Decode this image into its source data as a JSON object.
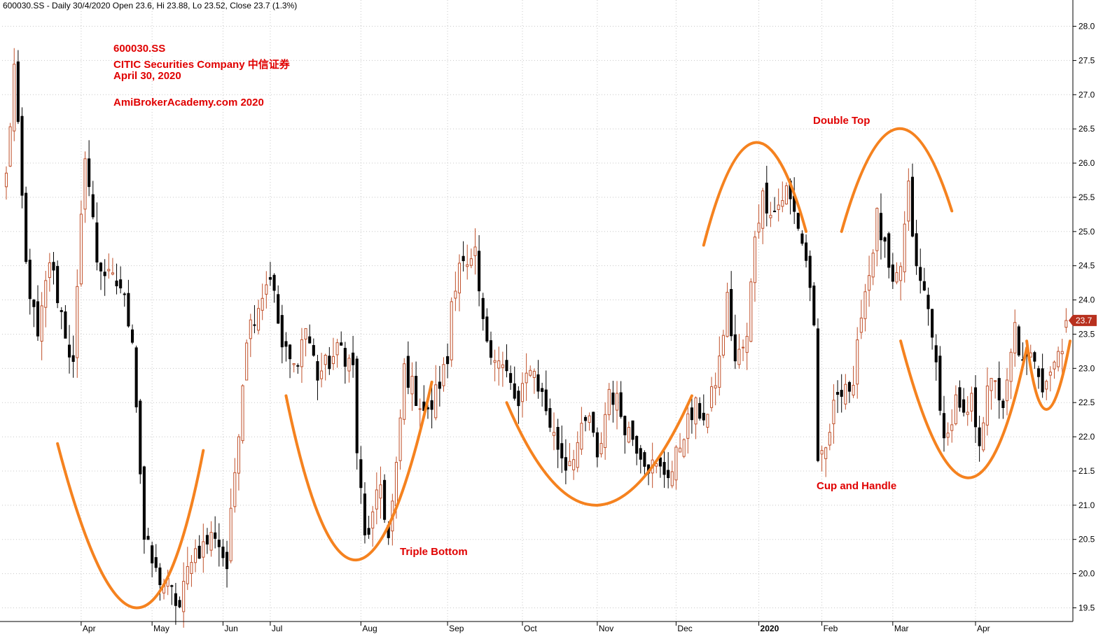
{
  "header": {
    "text": "600030.SS - Daily 30/4/2020 Open 23.6, Hi 23.88, Lo 23.52, Close 23.7 (1.3%)"
  },
  "info": {
    "symbol": "600030.SS",
    "company": "CITIC Securities Company 中信证券",
    "date": "April 30, 2020",
    "site": "AmiBrokerAcademy.com   2020"
  },
  "patterns": {
    "double_top": "Double Top",
    "triple_bottom": "Triple Bottom",
    "cup_and_handle": "Cup and Handle"
  },
  "colors": {
    "up": "#c0502a",
    "down": "#000000",
    "pattern_curve": "#f5821f",
    "annotation": "#e00000",
    "price_tag": "#b8301e",
    "grid": "#c8c8c8"
  },
  "chart_data": {
    "type": "candlestick",
    "symbol": "600030.SS",
    "interval": "Daily",
    "last_bar": {
      "date": "30/4/2020",
      "open": 23.6,
      "high": 23.88,
      "low": 23.52,
      "close": 23.7,
      "change_pct": 1.3
    },
    "last_price_label": "23.7",
    "ylim": [
      19.3,
      28.2
    ],
    "y_ticks": [
      "19.5",
      "20.0",
      "20.5",
      "21.0",
      "21.5",
      "22.0",
      "22.5",
      "23.0",
      "23.5",
      "24.0",
      "24.5",
      "25.0",
      "25.5",
      "26.0",
      "26.5",
      "27.0",
      "27.5",
      "28.0"
    ],
    "x_ticks": [
      {
        "label": "Apr",
        "bar": 19,
        "bold": false
      },
      {
        "label": "May",
        "bar": 37,
        "bold": false
      },
      {
        "label": "Jun",
        "bar": 55,
        "bold": false
      },
      {
        "label": "Jul",
        "bar": 67,
        "bold": false
      },
      {
        "label": "Aug",
        "bar": 90,
        "bold": false
      },
      {
        "label": "Sep",
        "bar": 112,
        "bold": false
      },
      {
        "label": "Oct",
        "bar": 131,
        "bold": false
      },
      {
        "label": "Nov",
        "bar": 150,
        "bold": false
      },
      {
        "label": "Dec",
        "bar": 170,
        "bold": false
      },
      {
        "label": "2020",
        "bar": 191,
        "bold": true
      },
      {
        "label": "Feb",
        "bar": 207,
        "bold": false
      },
      {
        "label": "Mar",
        "bar": 225,
        "bold": false
      },
      {
        "label": "Apr",
        "bar": 246,
        "bold": false
      }
    ],
    "anchors": [
      [
        0,
        25.8
      ],
      [
        2,
        27.4
      ],
      [
        5,
        24.5
      ],
      [
        8,
        23.4
      ],
      [
        11,
        24.6
      ],
      [
        14,
        23.8
      ],
      [
        17,
        23.0
      ],
      [
        20,
        26.2
      ],
      [
        23,
        24.6
      ],
      [
        26,
        24.3
      ],
      [
        29,
        24.2
      ],
      [
        32,
        23.5
      ],
      [
        35,
        20.5
      ],
      [
        38,
        20.0
      ],
      [
        41,
        19.8
      ],
      [
        44,
        19.5
      ],
      [
        47,
        20.3
      ],
      [
        50,
        20.4
      ],
      [
        53,
        20.6
      ],
      [
        56,
        20.1
      ],
      [
        58,
        21.5
      ],
      [
        61,
        23.5
      ],
      [
        65,
        24.1
      ],
      [
        67,
        24.4
      ],
      [
        70,
        23.3
      ],
      [
        73,
        23.0
      ],
      [
        76,
        23.6
      ],
      [
        79,
        22.9
      ],
      [
        82,
        23.1
      ],
      [
        85,
        23.3
      ],
      [
        88,
        23.0
      ],
      [
        89,
        21.8
      ],
      [
        91,
        20.5
      ],
      [
        93,
        20.8
      ],
      [
        95,
        21.3
      ],
      [
        97,
        20.5
      ],
      [
        99,
        21.5
      ],
      [
        101,
        23.0
      ],
      [
        104,
        22.6
      ],
      [
        107,
        22.3
      ],
      [
        110,
        22.8
      ],
      [
        112,
        23.1
      ],
      [
        113,
        24.0
      ],
      [
        115,
        24.6
      ],
      [
        117,
        24.4
      ],
      [
        119,
        24.6
      ],
      [
        121,
        23.6
      ],
      [
        124,
        23.2
      ],
      [
        127,
        22.9
      ],
      [
        130,
        22.4
      ],
      [
        133,
        23.1
      ],
      [
        136,
        22.6
      ],
      [
        139,
        22.0
      ],
      [
        142,
        21.6
      ],
      [
        145,
        21.9
      ],
      [
        148,
        22.3
      ],
      [
        150,
        21.6
      ],
      [
        153,
        22.7
      ],
      [
        155,
        22.5
      ],
      [
        157,
        22.2
      ],
      [
        160,
        21.9
      ],
      [
        163,
        21.6
      ],
      [
        166,
        21.5
      ],
      [
        169,
        21.5
      ],
      [
        172,
        22.1
      ],
      [
        175,
        22.4
      ],
      [
        178,
        22.3
      ],
      [
        181,
        23.1
      ],
      [
        183,
        24.0
      ],
      [
        185,
        23.1
      ],
      [
        188,
        23.4
      ],
      [
        190,
        25.0
      ],
      [
        192,
        25.5
      ],
      [
        195,
        25.3
      ],
      [
        198,
        25.6
      ],
      [
        201,
        25.1
      ],
      [
        203,
        24.6
      ],
      [
        205,
        23.7
      ],
      [
        206,
        21.5
      ],
      [
        208,
        21.8
      ],
      [
        211,
        22.7
      ],
      [
        213,
        22.8
      ],
      [
        215,
        22.6
      ],
      [
        217,
        23.9
      ],
      [
        219,
        24.4
      ],
      [
        221,
        25.2
      ],
      [
        223,
        24.7
      ],
      [
        225,
        24.1
      ],
      [
        227,
        24.5
      ],
      [
        229,
        25.6
      ],
      [
        231,
        24.4
      ],
      [
        233,
        24.1
      ],
      [
        235,
        23.6
      ],
      [
        237,
        22.3
      ],
      [
        239,
        22.0
      ],
      [
        241,
        22.5
      ],
      [
        243,
        22.2
      ],
      [
        245,
        22.5
      ],
      [
        247,
        22.0
      ],
      [
        249,
        22.6
      ],
      [
        251,
        22.9
      ],
      [
        253,
        22.3
      ],
      [
        256,
        23.6
      ],
      [
        258,
        23.0
      ],
      [
        261,
        23.2
      ],
      [
        263,
        22.8
      ],
      [
        266,
        23.1
      ],
      [
        268,
        23.4
      ],
      [
        269,
        23.7
      ]
    ],
    "pattern_curves": [
      {
        "label": "bottom-1",
        "points": [
          [
            13,
            21.9
          ],
          [
            33,
            19.5
          ],
          [
            50,
            21.8
          ]
        ],
        "dir": "up"
      },
      {
        "label": "bottom-2",
        "points": [
          [
            71,
            22.6
          ],
          [
            89,
            20.2
          ],
          [
            108,
            22.8
          ]
        ],
        "dir": "up"
      },
      {
        "label": "bottom-3",
        "points": [
          [
            127,
            22.5
          ],
          [
            150,
            21.0
          ],
          [
            174,
            22.6
          ]
        ],
        "dir": "up"
      },
      {
        "label": "top-1",
        "points": [
          [
            177,
            24.8
          ],
          [
            190,
            26.3
          ],
          [
            203,
            25.0
          ]
        ],
        "dir": "down"
      },
      {
        "label": "top-2",
        "points": [
          [
            212,
            25.0
          ],
          [
            226,
            26.5
          ],
          [
            240,
            25.3
          ]
        ],
        "dir": "down"
      },
      {
        "label": "cup",
        "points": [
          [
            227,
            23.4
          ],
          [
            244,
            21.4
          ],
          [
            259,
            23.3
          ]
        ],
        "dir": "up"
      },
      {
        "label": "handle",
        "points": [
          [
            259,
            23.4
          ],
          [
            264,
            22.4
          ],
          [
            270,
            23.4
          ]
        ],
        "dir": "up"
      }
    ]
  }
}
